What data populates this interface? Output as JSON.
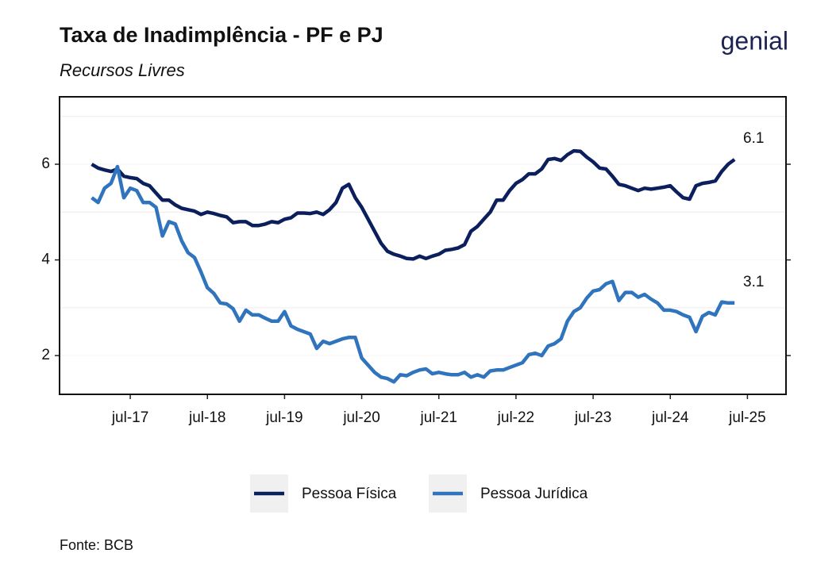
{
  "chart_data": {
    "type": "line",
    "title": "Taxa de Inadimplência - PF e PJ",
    "subtitle": "Recursos Livres",
    "source": "Fonte: BCB",
    "logo": "genial",
    "x": [
      "2017-01",
      "2017-02",
      "2017-03",
      "2017-04",
      "2017-05",
      "2017-06",
      "2017-07",
      "2017-08",
      "2017-09",
      "2017-10",
      "2017-11",
      "2017-12",
      "2018-01",
      "2018-02",
      "2018-03",
      "2018-04",
      "2018-05",
      "2018-06",
      "2018-07",
      "2018-08",
      "2018-09",
      "2018-10",
      "2018-11",
      "2018-12",
      "2019-01",
      "2019-02",
      "2019-03",
      "2019-04",
      "2019-05",
      "2019-06",
      "2019-07",
      "2019-08",
      "2019-09",
      "2019-10",
      "2019-11",
      "2019-12",
      "2020-01",
      "2020-02",
      "2020-03",
      "2020-04",
      "2020-05",
      "2020-06",
      "2020-07",
      "2020-08",
      "2020-09",
      "2020-10",
      "2020-11",
      "2020-12",
      "2021-01",
      "2021-02",
      "2021-03",
      "2021-04",
      "2021-05",
      "2021-06",
      "2021-07",
      "2021-08",
      "2021-09",
      "2021-10",
      "2021-11",
      "2021-12",
      "2022-01",
      "2022-02",
      "2022-03",
      "2022-04",
      "2022-05",
      "2022-06",
      "2022-07",
      "2022-08",
      "2022-09",
      "2022-10",
      "2022-11",
      "2022-12",
      "2023-01",
      "2023-02",
      "2023-03",
      "2023-04",
      "2023-05",
      "2023-06",
      "2023-07",
      "2023-08",
      "2023-09",
      "2023-10",
      "2023-11",
      "2023-12",
      "2024-01",
      "2024-02",
      "2024-03",
      "2024-04",
      "2024-05",
      "2024-06",
      "2024-07",
      "2024-08",
      "2024-09",
      "2024-10",
      "2024-11",
      "2024-12",
      "2025-01",
      "2025-02",
      "2025-03",
      "2025-04",
      "2025-05"
    ],
    "series": [
      {
        "name": "Pessoa Física",
        "color": "#0b1f5c",
        "values": [
          6.0,
          5.92,
          5.88,
          5.85,
          5.9,
          5.75,
          5.72,
          5.7,
          5.6,
          5.55,
          5.4,
          5.25,
          5.25,
          5.15,
          5.08,
          5.05,
          5.02,
          4.95,
          5.0,
          4.97,
          4.93,
          4.9,
          4.78,
          4.8,
          4.8,
          4.72,
          4.72,
          4.75,
          4.8,
          4.78,
          4.85,
          4.88,
          4.98,
          4.98,
          4.97,
          5.0,
          4.95,
          5.05,
          5.2,
          5.5,
          5.58,
          5.3,
          5.1,
          4.85,
          4.6,
          4.35,
          4.18,
          4.12,
          4.08,
          4.03,
          4.02,
          4.08,
          4.03,
          4.08,
          4.12,
          4.2,
          4.22,
          4.25,
          4.32,
          4.6,
          4.7,
          4.85,
          5.0,
          5.25,
          5.25,
          5.45,
          5.6,
          5.68,
          5.8,
          5.8,
          5.9,
          6.1,
          6.12,
          6.08,
          6.2,
          6.28,
          6.27,
          6.15,
          6.05,
          5.92,
          5.9,
          5.75,
          5.58,
          5.55,
          5.5,
          5.45,
          5.5,
          5.48,
          5.5,
          5.52,
          5.55,
          5.42,
          5.3,
          5.27,
          5.55,
          5.6,
          5.62,
          5.65,
          5.85,
          6.0,
          6.1
        ]
      },
      {
        "name": "Pessoa Jurídica",
        "color": "#2f74bd",
        "values": [
          5.3,
          5.2,
          5.5,
          5.6,
          5.95,
          5.3,
          5.5,
          5.45,
          5.2,
          5.2,
          5.1,
          4.5,
          4.8,
          4.75,
          4.4,
          4.15,
          4.05,
          3.75,
          3.42,
          3.3,
          3.1,
          3.08,
          2.98,
          2.72,
          2.95,
          2.85,
          2.85,
          2.78,
          2.72,
          2.72,
          2.92,
          2.62,
          2.55,
          2.5,
          2.45,
          2.15,
          2.3,
          2.25,
          2.3,
          2.35,
          2.38,
          2.38,
          1.95,
          1.8,
          1.65,
          1.55,
          1.52,
          1.45,
          1.6,
          1.58,
          1.65,
          1.7,
          1.72,
          1.62,
          1.65,
          1.62,
          1.6,
          1.6,
          1.65,
          1.55,
          1.6,
          1.55,
          1.68,
          1.7,
          1.7,
          1.75,
          1.8,
          1.85,
          2.02,
          2.05,
          2.0,
          2.2,
          2.25,
          2.35,
          2.72,
          2.92,
          3.0,
          3.2,
          3.35,
          3.38,
          3.5,
          3.55,
          3.15,
          3.32,
          3.32,
          3.22,
          3.28,
          3.18,
          3.1,
          2.95,
          2.95,
          2.92,
          2.85,
          2.8,
          2.5,
          2.82,
          2.9,
          2.85,
          3.12,
          3.1,
          3.1
        ]
      }
    ],
    "annotations": [
      {
        "label": "6.1",
        "x": "2025-05",
        "value": 6.1
      },
      {
        "label": "3.1",
        "x": "2025-05",
        "value": 3.1
      }
    ],
    "xlim": [
      "2016-08",
      "2026-01"
    ],
    "xticks": [
      {
        "value": "2017-07",
        "label": "jul-17"
      },
      {
        "value": "2018-07",
        "label": "jul-18"
      },
      {
        "value": "2019-07",
        "label": "jul-19"
      },
      {
        "value": "2020-07",
        "label": "jul-20"
      },
      {
        "value": "2021-07",
        "label": "jul-21"
      },
      {
        "value": "2022-07",
        "label": "jul-22"
      },
      {
        "value": "2023-07",
        "label": "jul-23"
      },
      {
        "value": "2024-07",
        "label": "jul-24"
      },
      {
        "value": "2025-07",
        "label": "jul-25"
      }
    ],
    "ylim": [
      1.19,
      7.41
    ],
    "yticks": [
      2,
      4,
      6
    ],
    "minor_yticks": [
      3,
      5,
      7
    ],
    "grid": true,
    "legend": "bottom"
  }
}
